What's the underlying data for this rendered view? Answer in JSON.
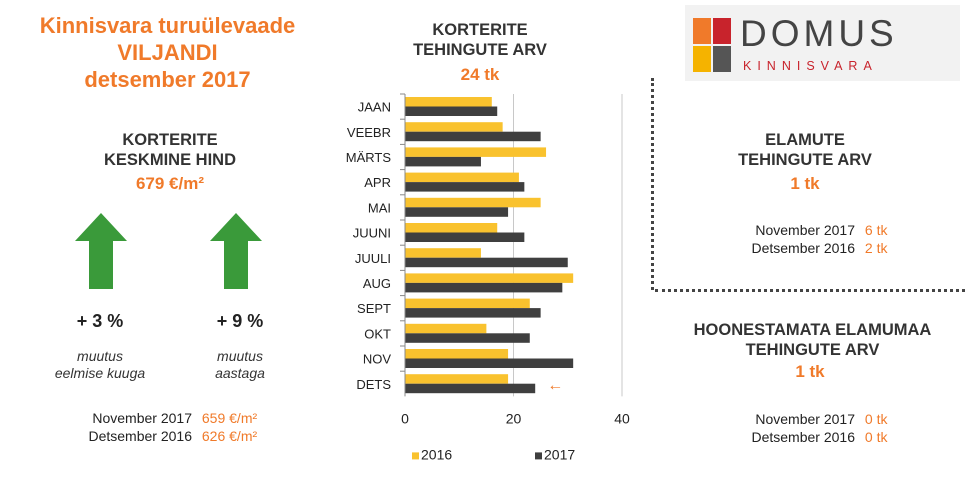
{
  "header": {
    "title_line1": "Kinnisvara turuülevaade",
    "title_line2": "VILJANDI",
    "title_line3": "detsember 2017"
  },
  "logo": {
    "word": "DOMUS",
    "sub": "KINNISVARA",
    "colors": [
      "#f07a2a",
      "#c8232c",
      "#f5b300",
      "#555555"
    ]
  },
  "avg_price": {
    "title_line1": "KORTERITE",
    "title_line2": "KESKMINE HIND",
    "value": "679 €/m²",
    "change_month": {
      "value": "+ 3 %",
      "note_line1": "muutus",
      "note_line2": "eelmise kuuga"
    },
    "change_year": {
      "value": "+ 9 %",
      "note_line1": "muutus",
      "note_line2": "aastaga"
    },
    "compare": [
      {
        "label": "November  2017",
        "value": "659 €/m²"
      },
      {
        "label": "Detsember  2016",
        "value": "626 €/m²"
      }
    ]
  },
  "apartments": {
    "title_line1": "KORTERITE",
    "title_line2": "TEHINGUTE ARV",
    "value": "24 tk"
  },
  "houses": {
    "title_line1": "ELAMUTE",
    "title_line2": "TEHINGUTE ARV",
    "value": "1 tk",
    "compare": [
      {
        "label": "November  2017",
        "value": "6 tk"
      },
      {
        "label": "Detsember  2016",
        "value": "2 tk"
      }
    ]
  },
  "land": {
    "title_line1": "HOONESTAMATA ELAMUMAA",
    "title_line2": "TEHINGUTE ARV",
    "value": "1 tk",
    "compare": [
      {
        "label": "November  2017",
        "value": "0 tk"
      },
      {
        "label": "Detsember  2016",
        "value": "0 tk"
      }
    ]
  },
  "colors": {
    "accent": "#f07a2a",
    "arrow": "#3a9a3a",
    "bar2016": "#f9c22e",
    "bar2017": "#3f3f3f"
  },
  "chart_data": {
    "type": "bar",
    "orientation": "horizontal",
    "categories": [
      "JAAN",
      "VEEBR",
      "MÄRTS",
      "APR",
      "MAI",
      "JUUNI",
      "JUULI",
      "AUG",
      "SEPT",
      "OKT",
      "NOV",
      "DETS"
    ],
    "series": [
      {
        "name": "2016",
        "values": [
          16,
          18,
          26,
          21,
          25,
          17,
          14,
          31,
          23,
          15,
          19,
          19
        ]
      },
      {
        "name": "2017",
        "values": [
          17,
          25,
          14,
          22,
          19,
          22,
          30,
          29,
          25,
          23,
          31,
          24
        ]
      }
    ],
    "xlim": [
      0,
      40
    ],
    "xticks": [
      0,
      20,
      40
    ],
    "grid": true,
    "legend": "bottom",
    "annotation": "←"
  }
}
